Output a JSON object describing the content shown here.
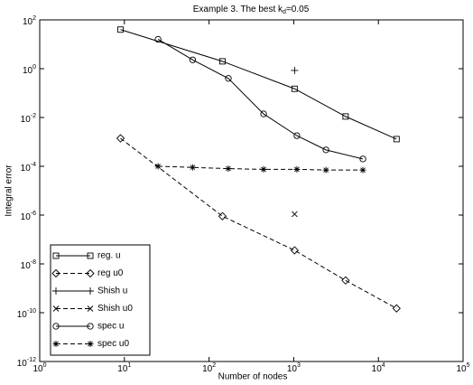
{
  "chart_data": {
    "type": "line",
    "title": [
      {
        "text": "Example 3. The best k"
      },
      {
        "text": "d",
        "sub": true
      },
      {
        "text": "=0.05"
      }
    ],
    "xlabel": "Number of nodes",
    "ylabel": "Integral error",
    "xscale": "log",
    "yscale": "log",
    "xlim": [
      1,
      100000
    ],
    "ylim": [
      1e-12,
      100
    ],
    "xticks": [
      {
        "value": 1,
        "label": "10",
        "sup": "0"
      },
      {
        "value": 10,
        "label": "10",
        "sup": "1"
      },
      {
        "value": 100,
        "label": "10",
        "sup": "2"
      },
      {
        "value": 1000,
        "label": "10",
        "sup": "3"
      },
      {
        "value": 10000,
        "label": "10",
        "sup": "4"
      },
      {
        "value": 100000,
        "label": "10",
        "sup": "5"
      }
    ],
    "yticks": [
      {
        "value": 1e-12,
        "label": "10",
        "sup": "-12"
      },
      {
        "value": 1e-10,
        "label": "10",
        "sup": "-10"
      },
      {
        "value": 1e-08,
        "label": "10",
        "sup": "-8"
      },
      {
        "value": 1e-06,
        "label": "10",
        "sup": "-6"
      },
      {
        "value": 0.0001,
        "label": "10",
        "sup": "-4"
      },
      {
        "value": 0.01,
        "label": "10",
        "sup": "-2"
      },
      {
        "value": 1,
        "label": "10",
        "sup": "0"
      },
      {
        "value": 100,
        "label": "10",
        "sup": "2"
      }
    ],
    "legend": "lower left",
    "series": [
      {
        "name": "reg. u",
        "color": "#000000",
        "marker": "square",
        "linestyle": "solid",
        "x": [
          9,
          144,
          1024,
          4096,
          16384
        ],
        "values": [
          40,
          2,
          0.15,
          0.011,
          0.0013
        ]
      },
      {
        "name": "reg u0",
        "color": "#000000",
        "marker": "diamond",
        "linestyle": "dashed",
        "x": [
          9,
          144,
          1024,
          4096,
          16384
        ],
        "values": [
          0.0014,
          9e-07,
          3.6e-08,
          2.1e-09,
          1.5e-10
        ]
      },
      {
        "name": "Shish u",
        "color": "#000000",
        "marker": "plus",
        "linestyle": "solid",
        "x": [
          1024
        ],
        "values": [
          0.85
        ]
      },
      {
        "name": "Shish u0",
        "color": "#000000",
        "marker": "x",
        "linestyle": "dashed",
        "x": [
          1024
        ],
        "values": [
          1.1e-06
        ]
      },
      {
        "name": "spec u",
        "color": "#000000",
        "marker": "circle",
        "linestyle": "solid",
        "x": [
          25,
          64,
          169,
          441,
          1089,
          2401,
          6561
        ],
        "values": [
          16,
          2.3,
          0.4,
          0.014,
          0.0018,
          0.00047,
          0.0002
        ]
      },
      {
        "name": "spec u0",
        "color": "#000000",
        "marker": "star",
        "linestyle": "dashed",
        "x": [
          25,
          64,
          169,
          441,
          1089,
          2401,
          6561
        ],
        "values": [
          0.0001,
          9e-05,
          8e-05,
          7.5e-05,
          7.5e-05,
          7e-05,
          7e-05
        ]
      }
    ]
  }
}
